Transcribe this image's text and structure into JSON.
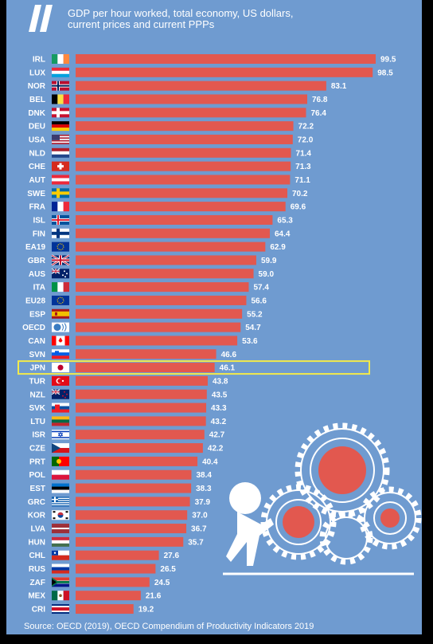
{
  "header": {
    "title_line1": "GDP per hour worked, total economy, US dollars,",
    "title_line2": "current prices and current PPPs"
  },
  "footer": {
    "source": "Source: OECD (2019), OECD Compendium of Productivity Indicators 2019"
  },
  "colors": {
    "background": "#6f9bd0",
    "bar": "#e2584f",
    "highlight": "#f2ea4b",
    "text": "#ffffff"
  },
  "chart_data": {
    "type": "bar",
    "orientation": "horizontal",
    "title": "GDP per hour worked, total economy, US dollars, current prices and current PPPs",
    "highlight": "JPN",
    "categories": [
      "IRL",
      "LUX",
      "NOR",
      "BEL",
      "DNK",
      "DEU",
      "USA",
      "NLD",
      "CHE",
      "AUT",
      "SWE",
      "FRA",
      "ISL",
      "FIN",
      "EA19",
      "GBR",
      "AUS",
      "ITA",
      "EU28",
      "ESP",
      "OECD",
      "CAN",
      "SVN",
      "JPN",
      "TUR",
      "NZL",
      "SVK",
      "LTU",
      "ISR",
      "CZE",
      "PRT",
      "POL",
      "EST",
      "GRC",
      "KOR",
      "LVA",
      "HUN",
      "CHL",
      "RUS",
      "ZAF",
      "MEX",
      "CRI"
    ],
    "values": [
      99.5,
      98.5,
      83.1,
      76.8,
      76.4,
      72.2,
      72.0,
      71.4,
      71.3,
      71.1,
      70.2,
      69.6,
      65.3,
      64.4,
      62.9,
      59.9,
      59.0,
      57.4,
      56.6,
      55.2,
      54.7,
      53.6,
      46.6,
      46.1,
      43.8,
      43.5,
      43.3,
      43.2,
      42.7,
      42.2,
      40.4,
      38.4,
      38.3,
      37.9,
      37.0,
      36.7,
      35.7,
      27.6,
      26.5,
      24.5,
      21.6,
      19.2
    ],
    "value_labels": [
      "99.5",
      "98.5",
      "83.1",
      "76.8",
      "76.4",
      "72.2",
      "72.0",
      "71.4",
      "71.3",
      "71.1",
      "70.2",
      "69.6",
      "65.3",
      "64.4",
      "62.9",
      "59.9",
      "59.0",
      "57.4",
      "56.6",
      "55.2",
      "54.7",
      "53.6",
      "46.6",
      "46.1",
      "43.8",
      "43.5",
      "43.3",
      "43.2",
      "42.7",
      "42.2",
      "40.4",
      "38.4",
      "38.3",
      "37.9",
      "37.0",
      "36.7",
      "35.7",
      "27.6",
      "26.5",
      "24.5",
      "21.6",
      "19.2"
    ],
    "xlim": [
      0,
      100
    ],
    "grid": false,
    "legend": "none"
  }
}
